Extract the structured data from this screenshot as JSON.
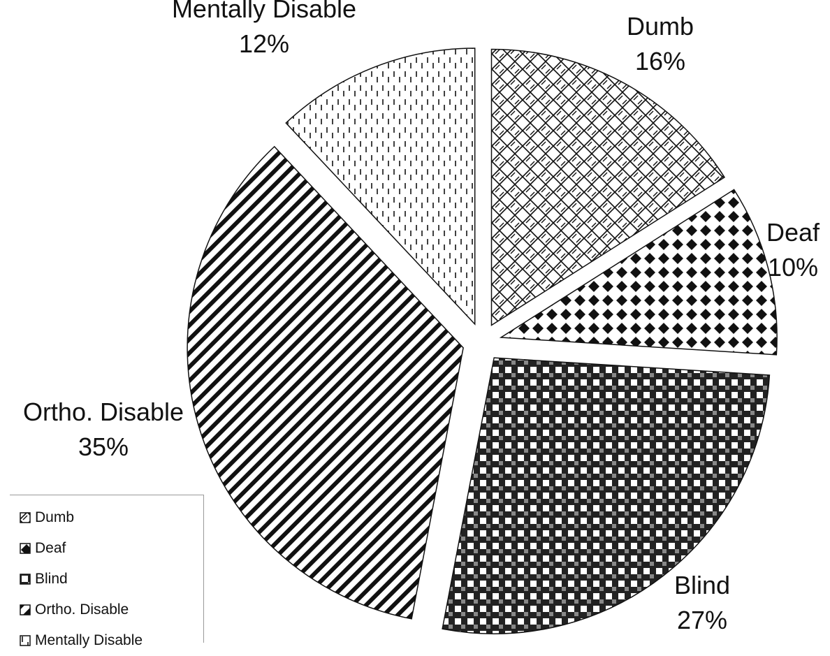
{
  "chart_data": {
    "type": "pie",
    "exploded": true,
    "categories": [
      "Dumb",
      "Deaf",
      "Blind",
      "Ortho. Disable",
      "Mentally Disable"
    ],
    "values": [
      16,
      10,
      27,
      35,
      12
    ],
    "value_labels": [
      "16%",
      "10%",
      "27%",
      "35%",
      "12%"
    ],
    "patterns": [
      "weave",
      "diamond-check",
      "checker",
      "diagonal-stripes",
      "dashed-vertical"
    ],
    "legend": {
      "position": "bottom-left",
      "entries": [
        "Dumb",
        "Deaf",
        "Blind",
        "Ortho. Disable",
        "Mentally Disable"
      ]
    },
    "colors": {
      "ink": "#111111",
      "background": "#ffffff"
    }
  }
}
